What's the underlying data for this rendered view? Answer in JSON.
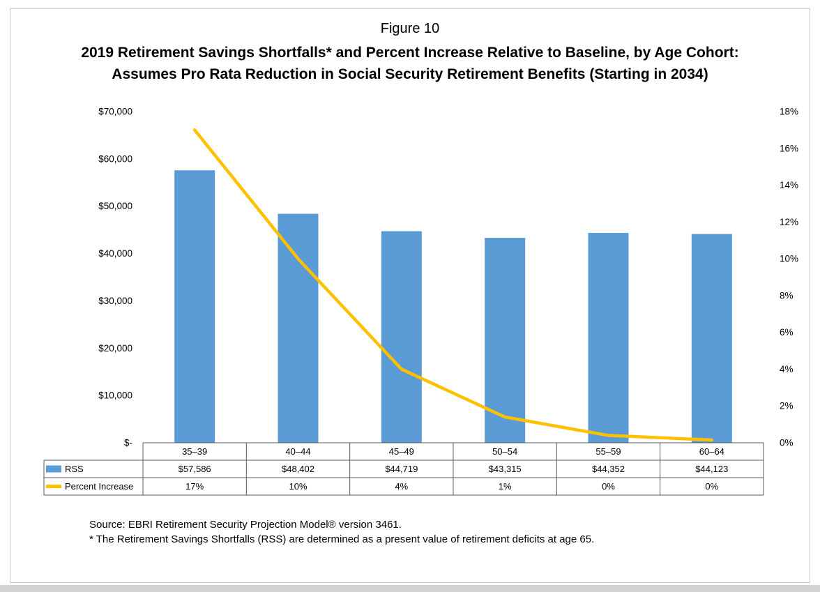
{
  "figure": {
    "label": "Figure 10"
  },
  "chart_data": {
    "type": "bar+line combo",
    "title_line1": "2019 Retirement Savings Shortfalls* and Percent Increase Relative to Baseline, by Age Cohort:",
    "title_line2": "Assumes Pro Rata Reduction in Social Security Retirement Benefits (Starting in 2034)",
    "categories": [
      "35–39",
      "40–44",
      "45–49",
      "50–54",
      "55–59",
      "60–64"
    ],
    "series": [
      {
        "name": "RSS",
        "type": "bar",
        "axis": "left",
        "color": "#5B9BD5",
        "values": [
          57586,
          48402,
          44719,
          43315,
          44352,
          44123
        ],
        "labels": [
          "$57,586",
          "$48,402",
          "$44,719",
          "$43,315",
          "$44,352",
          "$44,123"
        ]
      },
      {
        "name": "Percent Increase",
        "type": "line",
        "axis": "right",
        "color": "#FFC000",
        "values": [
          17,
          10,
          4,
          1,
          0,
          0
        ],
        "plot_values": [
          17,
          10,
          4,
          1.4,
          0.4,
          0.15
        ],
        "labels": [
          "17%",
          "10%",
          "4%",
          "1%",
          "0%",
          "0%"
        ]
      }
    ],
    "left_axis": {
      "min": 0,
      "max": 70000,
      "step": 10000,
      "tick_labels": [
        "$-",
        "$10,000",
        "$20,000",
        "$30,000",
        "$40,000",
        "$50,000",
        "$60,000",
        "$70,000"
      ]
    },
    "right_axis": {
      "min": 0,
      "max": 18,
      "step": 2,
      "tick_labels": [
        "0%",
        "2%",
        "4%",
        "6%",
        "8%",
        "10%",
        "12%",
        "14%",
        "16%",
        "18%"
      ]
    },
    "grid": false,
    "legend_position": "bottom-data-table"
  },
  "footnotes": {
    "source": "Source: EBRI Retirement Security Projection Model® version 3461.",
    "note": "* The Retirement Savings Shortfalls (RSS) are determined as a present value of retirement deficits at age 65."
  }
}
